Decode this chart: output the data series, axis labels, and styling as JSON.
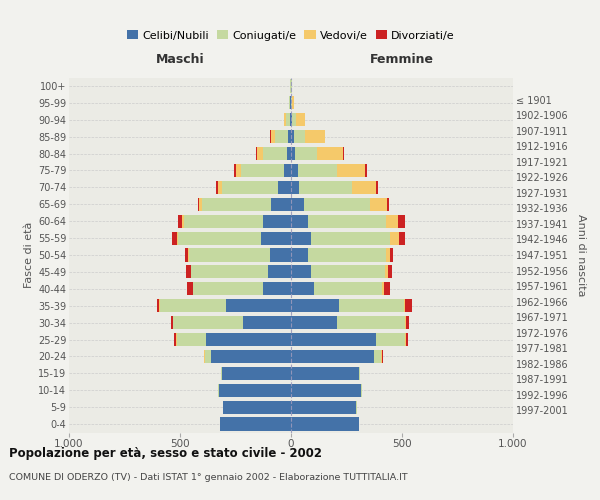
{
  "age_groups": [
    "0-4",
    "5-9",
    "10-14",
    "15-19",
    "20-24",
    "25-29",
    "30-34",
    "35-39",
    "40-44",
    "45-49",
    "50-54",
    "55-59",
    "60-64",
    "65-69",
    "70-74",
    "75-79",
    "80-84",
    "85-89",
    "90-94",
    "95-99",
    "100+"
  ],
  "birth_years": [
    "1997-2001",
    "1992-1996",
    "1987-1991",
    "1982-1986",
    "1977-1981",
    "1972-1976",
    "1967-1971",
    "1962-1966",
    "1957-1961",
    "1952-1956",
    "1947-1951",
    "1942-1946",
    "1937-1941",
    "1932-1936",
    "1927-1931",
    "1922-1926",
    "1917-1921",
    "1912-1916",
    "1907-1911",
    "1902-1906",
    "≤ 1901"
  ],
  "male": {
    "celibi": [
      320,
      305,
      325,
      310,
      360,
      385,
      215,
      295,
      125,
      105,
      95,
      135,
      125,
      88,
      58,
      32,
      18,
      12,
      6,
      3,
      2
    ],
    "coniugati": [
      2,
      2,
      3,
      5,
      28,
      130,
      315,
      295,
      315,
      345,
      365,
      375,
      355,
      315,
      255,
      195,
      108,
      58,
      18,
      5,
      2
    ],
    "vedovi": [
      0,
      0,
      0,
      0,
      2,
      2,
      2,
      3,
      2,
      2,
      3,
      5,
      10,
      10,
      15,
      20,
      28,
      22,
      8,
      2,
      0
    ],
    "divorziati": [
      0,
      0,
      0,
      2,
      3,
      8,
      10,
      10,
      25,
      20,
      15,
      20,
      18,
      8,
      10,
      10,
      3,
      2,
      0,
      0,
      0
    ]
  },
  "female": {
    "nubili": [
      305,
      295,
      315,
      305,
      375,
      385,
      205,
      215,
      105,
      88,
      78,
      88,
      78,
      58,
      38,
      32,
      18,
      12,
      6,
      2,
      2
    ],
    "coniugate": [
      2,
      2,
      3,
      5,
      32,
      128,
      308,
      295,
      305,
      335,
      348,
      358,
      348,
      298,
      238,
      175,
      98,
      52,
      18,
      4,
      2
    ],
    "vedove": [
      0,
      0,
      0,
      0,
      2,
      3,
      4,
      5,
      8,
      12,
      20,
      40,
      58,
      78,
      108,
      128,
      118,
      88,
      38,
      8,
      2
    ],
    "divorziate": [
      0,
      0,
      0,
      2,
      5,
      10,
      15,
      30,
      30,
      20,
      15,
      28,
      28,
      8,
      8,
      8,
      5,
      3,
      2,
      0,
      0
    ]
  },
  "colors": {
    "celibi": "#4472a8",
    "coniugati": "#c5d9a0",
    "vedovi": "#f5c96a",
    "divorziati": "#cc2222"
  },
  "xlim": 1000,
  "title": "Popolazione per età, sesso e stato civile - 2002",
  "subtitle": "COMUNE DI ODERZO (TV) - Dati ISTAT 1° gennaio 2002 - Elaborazione TUTTITALIA.IT",
  "ylabel_left": "Fasce di età",
  "ylabel_right": "Anni di nascita",
  "xlabel_left": "Maschi",
  "xlabel_right": "Femmine",
  "bg_color": "#f2f2ee",
  "plot_bg": "#ebebE5"
}
